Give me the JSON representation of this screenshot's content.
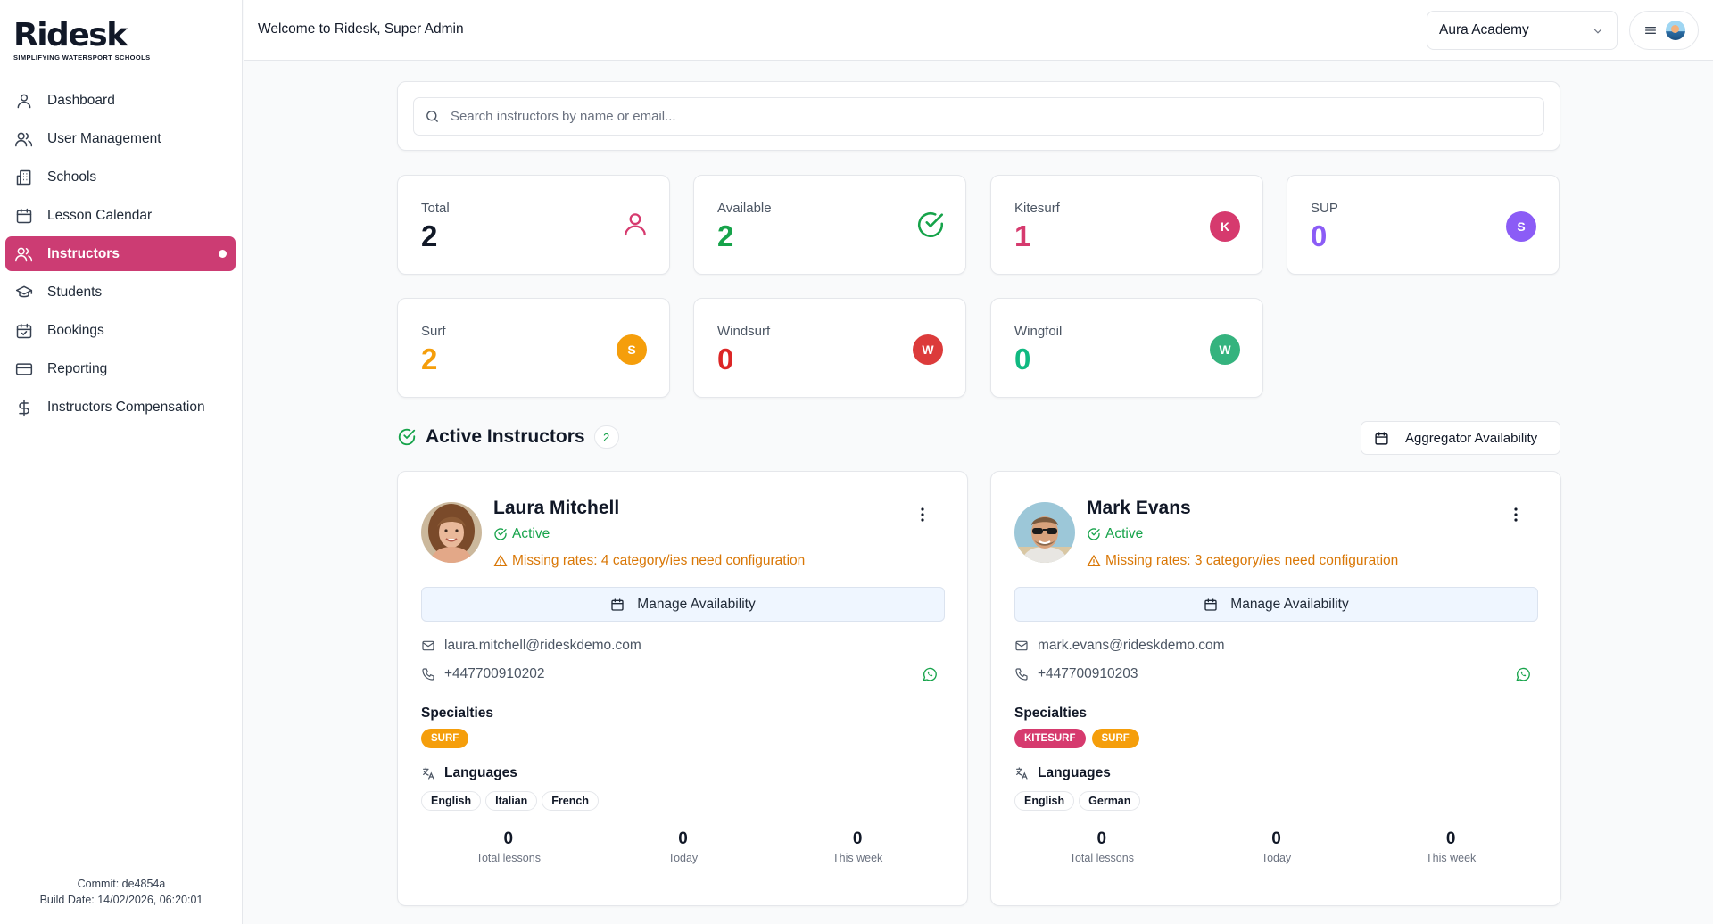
{
  "brand": {
    "logo_main": "Rid",
    "logo_accent": "esk",
    "tagline": "SIMPLIFYING WATERSPORT SCHOOLS"
  },
  "sidebar": {
    "items": [
      {
        "label": "Dashboard",
        "icon": "user-icon"
      },
      {
        "label": "User Management",
        "icon": "users-icon"
      },
      {
        "label": "Schools",
        "icon": "building-icon"
      },
      {
        "label": "Lesson Calendar",
        "icon": "calendar-icon"
      },
      {
        "label": "Instructors",
        "icon": "users-icon",
        "active": true
      },
      {
        "label": "Students",
        "icon": "graduation-cap-icon"
      },
      {
        "label": "Bookings",
        "icon": "calendar-check-icon"
      },
      {
        "label": "Reporting",
        "icon": "credit-card-icon"
      },
      {
        "label": "Instructors Compensation",
        "icon": "dollar-icon"
      }
    ],
    "commit": "Commit: de4854a",
    "build_date": "Build Date: 14/02/2026, 06:20:01"
  },
  "header": {
    "welcome": "Welcome to Ridesk, Super Admin",
    "school": "Aura Academy"
  },
  "search": {
    "placeholder": "Search instructors by name or email..."
  },
  "stats": [
    {
      "label": "Total",
      "value": "2",
      "color": "#111827",
      "icon": "person-icon",
      "icon_color": "#d63a6e"
    },
    {
      "label": "Available",
      "value": "2",
      "color": "#16a34a",
      "icon": "check-circle-icon",
      "icon_color": "#16a34a"
    },
    {
      "label": "Kitesurf",
      "value": "1",
      "color": "#d63a6e",
      "badge": "K",
      "badge_color": "#d63a6e"
    },
    {
      "label": "SUP",
      "value": "0",
      "color": "#8b5cf6",
      "badge": "S",
      "badge_color": "#8b5cf6"
    },
    {
      "label": "Surf",
      "value": "2",
      "color": "#f59e0b",
      "badge": "S",
      "badge_color": "#f59e0b"
    },
    {
      "label": "Windsurf",
      "value": "0",
      "color": "#dc2626",
      "badge": "W",
      "badge_color": "#dc3b3b"
    },
    {
      "label": "Wingfoil",
      "value": "0",
      "color": "#10b981",
      "badge": "W",
      "badge_color": "#35b37e"
    }
  ],
  "section": {
    "title": "Active Instructors",
    "count": "2",
    "aggregator_button": "Aggregator Availability"
  },
  "instructors": [
    {
      "name": "Laura Mitchell",
      "status": "Active",
      "warning": "Missing rates: 4 category/ies need configuration",
      "manage_label": "Manage Availability",
      "email": "laura.mitchell@rideskdemo.com",
      "phone": "+447700910202",
      "specialties_title": "Specialties",
      "specialties": [
        {
          "label": "SURF",
          "color": "#f59e0b"
        }
      ],
      "languages_title": "Languages",
      "languages": [
        "English",
        "Italian",
        "French"
      ],
      "metrics": [
        {
          "value": "0",
          "label": "Total lessons"
        },
        {
          "value": "0",
          "label": "Today"
        },
        {
          "value": "0",
          "label": "This week"
        }
      ]
    },
    {
      "name": "Mark Evans",
      "status": "Active",
      "warning": "Missing rates: 3 category/ies need configuration",
      "manage_label": "Manage Availability",
      "email": "mark.evans@rideskdemo.com",
      "phone": "+447700910203",
      "specialties_title": "Specialties",
      "specialties": [
        {
          "label": "KITESURF",
          "color": "#d63a6e"
        },
        {
          "label": "SURF",
          "color": "#f59e0b"
        }
      ],
      "languages_title": "Languages",
      "languages": [
        "English",
        "German"
      ],
      "metrics": [
        {
          "value": "0",
          "label": "Total lessons"
        },
        {
          "value": "0",
          "label": "Today"
        },
        {
          "value": "0",
          "label": "This week"
        }
      ]
    }
  ]
}
